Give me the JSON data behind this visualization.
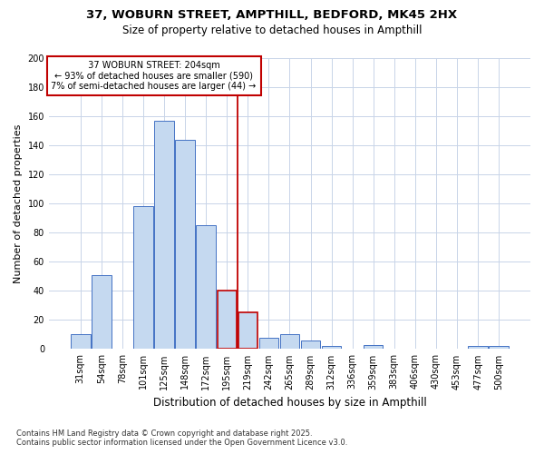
{
  "title_line1": "37, WOBURN STREET, AMPTHILL, BEDFORD, MK45 2HX",
  "title_line2": "Size of property relative to detached houses in Ampthill",
  "xlabel": "Distribution of detached houses by size in Ampthill",
  "ylabel": "Number of detached properties",
  "footer_line1": "Contains HM Land Registry data © Crown copyright and database right 2025.",
  "footer_line2": "Contains public sector information licensed under the Open Government Licence v3.0.",
  "annotation_line1": "  37 WOBURN STREET: 204sqm  ",
  "annotation_line2": "← 93% of detached houses are smaller (590)",
  "annotation_line3": "7% of semi-detached houses are larger (44) →",
  "bar_categories": [
    "31sqm",
    "54sqm",
    "78sqm",
    "101sqm",
    "125sqm",
    "148sqm",
    "172sqm",
    "195sqm",
    "219sqm",
    "242sqm",
    "265sqm",
    "289sqm",
    "312sqm",
    "336sqm",
    "359sqm",
    "383sqm",
    "406sqm",
    "430sqm",
    "453sqm",
    "477sqm",
    "500sqm"
  ],
  "bar_values": [
    10,
    51,
    0,
    98,
    157,
    144,
    85,
    40,
    25,
    8,
    10,
    6,
    2,
    0,
    3,
    0,
    0,
    0,
    0,
    2,
    2
  ],
  "bar_color": "#c5d9f0",
  "bar_edge_color": "#4472c4",
  "highlight_indices": [
    7,
    8
  ],
  "highlight_edge_color": "#c00000",
  "vline_color": "#c00000",
  "annotation_box_edge_color": "#c00000",
  "bg_color": "#ffffff",
  "grid_color": "#c8d4e8",
  "ylim": [
    0,
    200
  ],
  "yticks": [
    0,
    20,
    40,
    60,
    80,
    100,
    120,
    140,
    160,
    180,
    200
  ]
}
